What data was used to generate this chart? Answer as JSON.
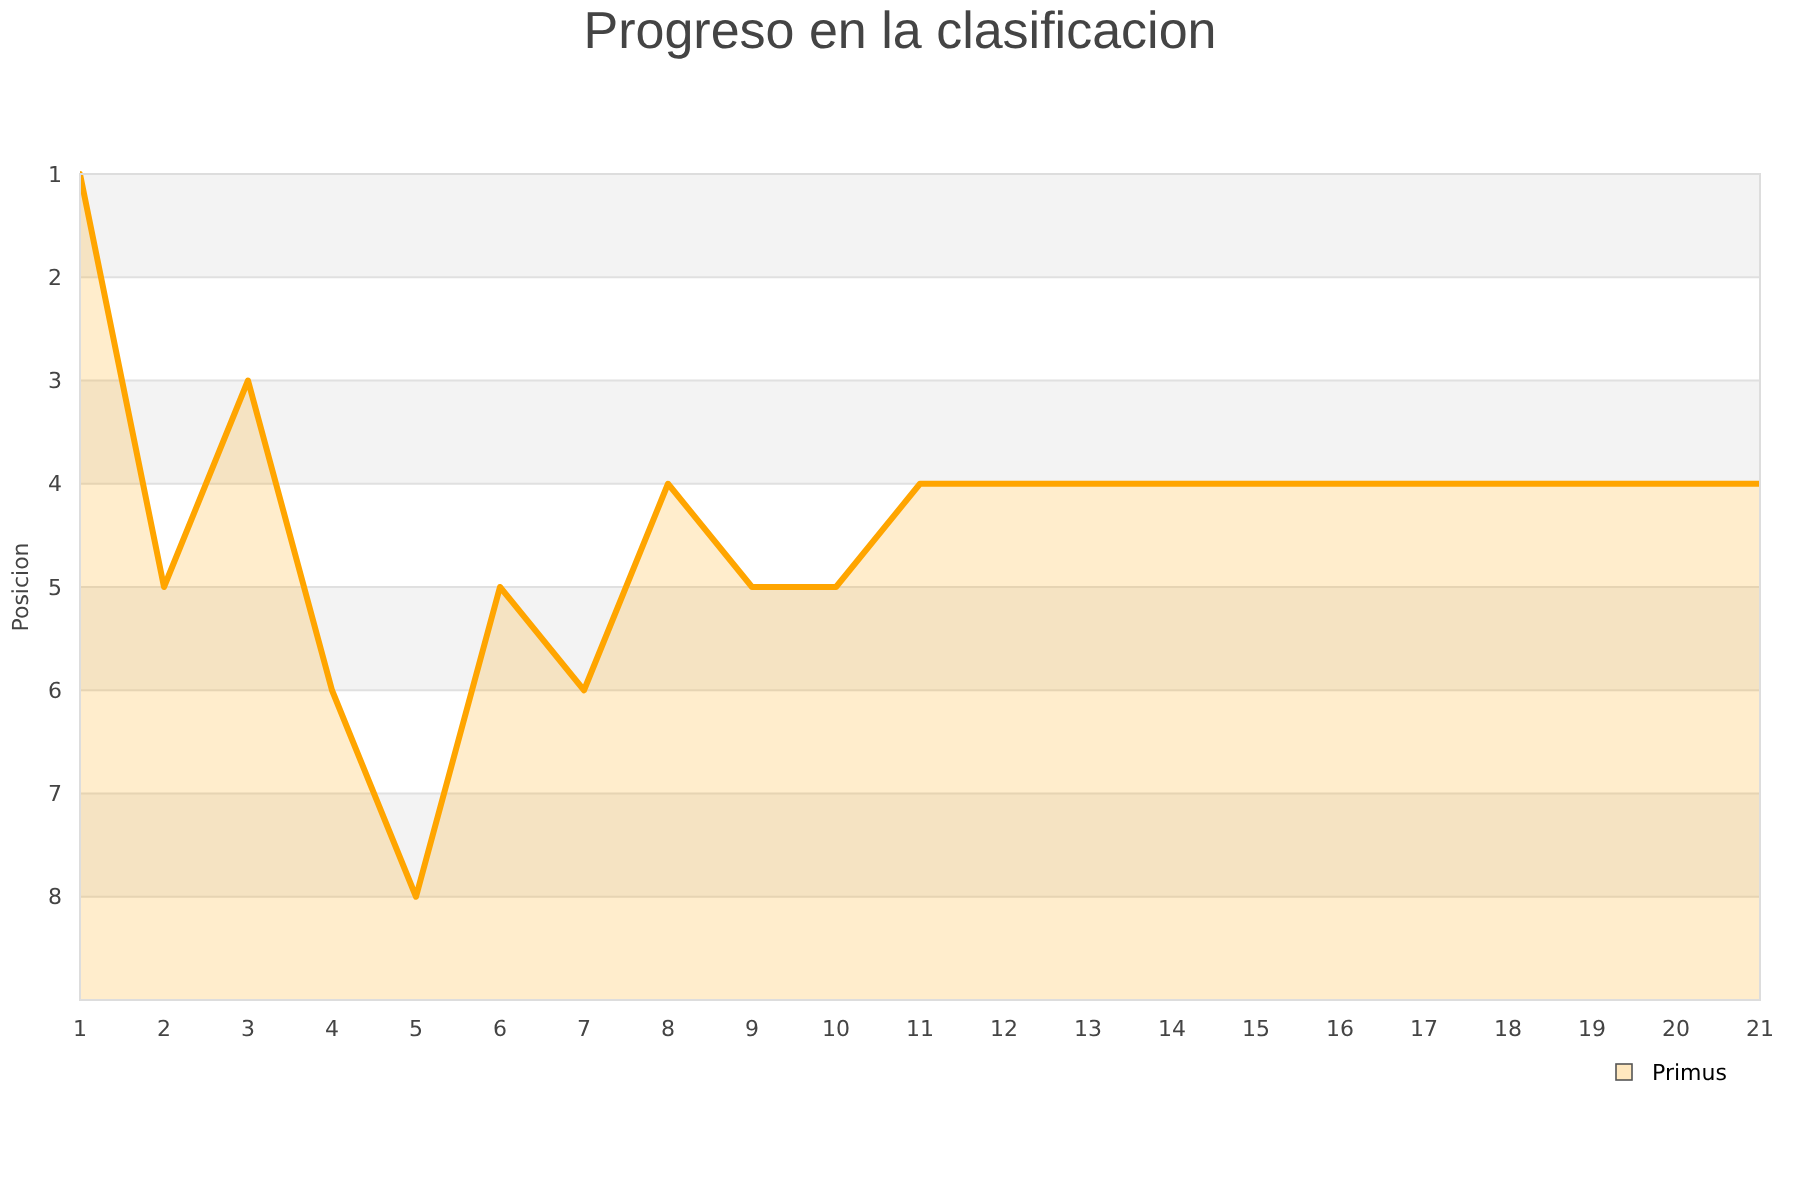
{
  "chart_data": {
    "type": "area",
    "title": "Progreso en la clasificacion",
    "ylabel": "Posicion",
    "x": [
      1,
      2,
      3,
      4,
      5,
      6,
      7,
      8,
      9,
      10,
      11,
      12,
      13,
      14,
      15,
      16,
      17,
      18,
      19,
      20,
      21
    ],
    "series": [
      {
        "name": "Primus",
        "color": "#ffa500",
        "values": [
          1,
          5,
          3,
          6,
          8,
          5,
          6,
          4,
          5,
          5,
          4,
          4,
          4,
          4,
          4,
          4,
          4,
          4,
          4,
          4,
          4
        ]
      }
    ],
    "xlim": [
      1,
      21
    ],
    "xticks": [
      1,
      2,
      3,
      4,
      5,
      6,
      7,
      8,
      9,
      10,
      11,
      12,
      13,
      14,
      15,
      16,
      17,
      18,
      19,
      20,
      21
    ],
    "ylim": [
      9,
      1
    ],
    "yticks": [
      1,
      2,
      3,
      4,
      5,
      6,
      7,
      8
    ],
    "bands": [
      {
        "axis": "y",
        "from": 1,
        "to": 2,
        "color": "#f3f3f3"
      },
      {
        "axis": "y",
        "from": 3,
        "to": 4,
        "color": "#f3f3f3"
      },
      {
        "axis": "y",
        "from": 5,
        "to": 6,
        "color": "#f3f3f3"
      },
      {
        "axis": "y",
        "from": 7,
        "to": 8,
        "color": "#f3f3f3"
      }
    ],
    "grid": "y",
    "legend": "bottom right"
  }
}
